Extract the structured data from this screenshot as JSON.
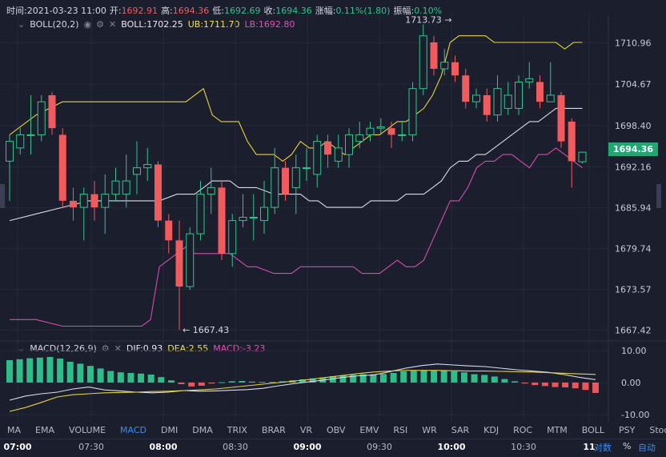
{
  "info_bar": {
    "time_label": "时间:2021-03-23 11:00",
    "open_label": "开:",
    "open": "1692.91",
    "high_label": "高:",
    "high": "1694.36",
    "low_label": "低:",
    "low": "1692.69",
    "close_label": "收:",
    "close": "1694.36",
    "change_label": "涨幅:",
    "change": "0.11%(1.80)",
    "amplitude_label": "振幅:",
    "amplitude": "0.10%"
  },
  "boll_legend": {
    "name": "BOLL(20,2)",
    "mid": "BOLL:1702.25",
    "ub": "UB:1711.70",
    "lb": "LB:1692.80"
  },
  "macd_legend": {
    "name": "MACD(12,26,9)",
    "dif": "DIF:0.93",
    "dea": "DEA:2.55",
    "macd": "MACD:-3.23"
  },
  "current_price_tag": "1694.36",
  "tabs": [
    "MA",
    "EMA",
    "VOLUME",
    "MACD",
    "DMI",
    "DMA",
    "TRIX",
    "BRAR",
    "VR",
    "OBV",
    "EMV",
    "RSI",
    "WR",
    "SAR",
    "KDJ",
    "ROC",
    "MTM",
    "BOLL",
    "PSY",
    "StochRSI"
  ],
  "active_tab": "MACD",
  "time_axis": [
    "07:00",
    "07:30",
    "08:00",
    "08:30",
    "09:00",
    "09:30",
    "10:00",
    "10:30",
    "11"
  ],
  "footer": {
    "log": "对数",
    "percent": "%",
    "auto": "自动"
  },
  "colors": {
    "up": "#2fc58d",
    "down": "#f25b5e",
    "mid": "#d9dbe4",
    "ub": "#e8d33c",
    "lb": "#d84bb0",
    "dif": "#d9dbe4",
    "dea": "#e8d33c",
    "background": "#1b1e2d"
  },
  "chart_data": [
    {
      "type": "candlestick",
      "title": "",
      "y_ticks": [
        1710.96,
        1704.67,
        1698.4,
        1692.16,
        1685.94,
        1679.74,
        1673.57,
        1667.42
      ],
      "ylim": [
        1666.0,
        1715.0
      ],
      "annotations": [
        {
          "label": "1713.73 →",
          "value": 1713.73,
          "index": 42
        },
        {
          "label": "← 1667.43",
          "value": 1667.43,
          "index": 16
        }
      ],
      "candles": [
        {
          "o": 1693.0,
          "c": 1696.0,
          "h": 1697.0,
          "l": 1687.0
        },
        {
          "o": 1695.0,
          "c": 1697.0,
          "h": 1698.0,
          "l": 1694.0
        },
        {
          "o": 1697.0,
          "c": 1697.0,
          "h": 1703.0,
          "l": 1694.0
        },
        {
          "o": 1697.0,
          "c": 1702.0,
          "h": 1703.0,
          "l": 1696.0
        },
        {
          "o": 1703.0,
          "c": 1698.0,
          "h": 1703.5,
          "l": 1697.0
        },
        {
          "o": 1697.0,
          "c": 1687.0,
          "h": 1698.0,
          "l": 1686.0
        },
        {
          "o": 1687.0,
          "c": 1686.0,
          "h": 1689.0,
          "l": 1684.0
        },
        {
          "o": 1686.0,
          "c": 1688.0,
          "h": 1689.0,
          "l": 1681.0
        },
        {
          "o": 1688.0,
          "c": 1686.0,
          "h": 1690.0,
          "l": 1684.0
        },
        {
          "o": 1686.0,
          "c": 1688.0,
          "h": 1691.0,
          "l": 1682.0
        },
        {
          "o": 1688.0,
          "c": 1690.0,
          "h": 1692.0,
          "l": 1687.0
        },
        {
          "o": 1688.0,
          "c": 1690.0,
          "h": 1694.0,
          "l": 1686.0
        },
        {
          "o": 1691.0,
          "c": 1692.0,
          "h": 1696.0,
          "l": 1688.0
        },
        {
          "o": 1692.0,
          "c": 1692.5,
          "h": 1695.0,
          "l": 1690.0
        },
        {
          "o": 1692.5,
          "c": 1684.0,
          "h": 1693.0,
          "l": 1683.0
        },
        {
          "o": 1684.0,
          "c": 1681.0,
          "h": 1685.0,
          "l": 1679.0
        },
        {
          "o": 1681.0,
          "c": 1674.0,
          "h": 1684.0,
          "l": 1667.43
        },
        {
          "o": 1674.0,
          "c": 1682.0,
          "h": 1683.0,
          "l": 1673.5
        },
        {
          "o": 1682.0,
          "c": 1688.0,
          "h": 1690.0,
          "l": 1681.0
        },
        {
          "o": 1688.0,
          "c": 1689.0,
          "h": 1692.0,
          "l": 1685.0
        },
        {
          "o": 1689.0,
          "c": 1679.0,
          "h": 1690.0,
          "l": 1678.0
        },
        {
          "o": 1679.0,
          "c": 1684.0,
          "h": 1685.0,
          "l": 1677.0
        },
        {
          "o": 1684.0,
          "c": 1684.5,
          "h": 1688.0,
          "l": 1683.0
        },
        {
          "o": 1684.5,
          "c": 1684.5,
          "h": 1688.0,
          "l": 1681.0
        },
        {
          "o": 1684.0,
          "c": 1686.0,
          "h": 1690.0,
          "l": 1682.0
        },
        {
          "o": 1686.0,
          "c": 1692.0,
          "h": 1695.0,
          "l": 1685.0
        },
        {
          "o": 1692.0,
          "c": 1688.0,
          "h": 1693.0,
          "l": 1687.0
        },
        {
          "o": 1689.0,
          "c": 1692.0,
          "h": 1694.0,
          "l": 1685.0
        },
        {
          "o": 1692.0,
          "c": 1692.0,
          "h": 1695.0,
          "l": 1690.0
        },
        {
          "o": 1691.0,
          "c": 1696.0,
          "h": 1697.0,
          "l": 1689.0
        },
        {
          "o": 1696.0,
          "c": 1694.0,
          "h": 1697.0,
          "l": 1692.0
        },
        {
          "o": 1693.0,
          "c": 1695.0,
          "h": 1697.0,
          "l": 1692.0
        },
        {
          "o": 1694.0,
          "c": 1697.0,
          "h": 1698.0,
          "l": 1692.0
        },
        {
          "o": 1696.0,
          "c": 1697.0,
          "h": 1699.0,
          "l": 1695.0
        },
        {
          "o": 1697.0,
          "c": 1698.0,
          "h": 1699.0,
          "l": 1696.0
        },
        {
          "o": 1698.0,
          "c": 1698.2,
          "h": 1699.5,
          "l": 1697.0
        },
        {
          "o": 1698.0,
          "c": 1697.0,
          "h": 1699.0,
          "l": 1695.0
        },
        {
          "o": 1697.0,
          "c": 1697.0,
          "h": 1699.0,
          "l": 1696.0
        },
        {
          "o": 1697.0,
          "c": 1704.0,
          "h": 1705.0,
          "l": 1696.0
        },
        {
          "o": 1704.0,
          "c": 1712.0,
          "h": 1713.73,
          "l": 1703.0
        },
        {
          "o": 1711.0,
          "c": 1707.0,
          "h": 1712.0,
          "l": 1706.0
        },
        {
          "o": 1707.0,
          "c": 1708.0,
          "h": 1710.0,
          "l": 1706.0
        },
        {
          "o": 1708.0,
          "c": 1706.0,
          "h": 1709.0,
          "l": 1705.0
        },
        {
          "o": 1706.0,
          "c": 1702.0,
          "h": 1707.0,
          "l": 1701.0
        },
        {
          "o": 1702.0,
          "c": 1703.0,
          "h": 1704.0,
          "l": 1701.0
        },
        {
          "o": 1703.0,
          "c": 1700.0,
          "h": 1704.0,
          "l": 1699.0
        },
        {
          "o": 1700.0,
          "c": 1704.0,
          "h": 1706.0,
          "l": 1699.0
        },
        {
          "o": 1701.0,
          "c": 1703.0,
          "h": 1705.0,
          "l": 1700.0
        },
        {
          "o": 1701.0,
          "c": 1705.0,
          "h": 1706.0,
          "l": 1700.0
        },
        {
          "o": 1705.0,
          "c": 1705.5,
          "h": 1708.0,
          "l": 1704.0
        },
        {
          "o": 1705.0,
          "c": 1702.0,
          "h": 1706.0,
          "l": 1701.0
        },
        {
          "o": 1702.0,
          "c": 1703.0,
          "h": 1708.0,
          "l": 1702.0
        },
        {
          "o": 1703.0,
          "c": 1696.0,
          "h": 1703.5,
          "l": 1695.0
        },
        {
          "o": 1699.0,
          "c": 1693.0,
          "h": 1699.5,
          "l": 1689.0
        },
        {
          "o": 1692.91,
          "c": 1694.36,
          "h": 1694.36,
          "l": 1692.69
        }
      ],
      "boll_ub": [
        1697,
        1700,
        1702,
        1702,
        1702,
        1702,
        1702,
        1702,
        1702,
        1702,
        1702,
        1703,
        1704,
        1700,
        1699,
        1699,
        1699,
        1696,
        1694,
        1694,
        1693,
        1694,
        1696,
        1695,
        1695,
        1696,
        1695,
        1694,
        1695,
        1696,
        1697,
        1697,
        1698,
        1699,
        1699,
        1700,
        1701,
        1703,
        1706,
        1711,
        1712,
        1712,
        1712,
        1712,
        1711,
        1711,
        1711,
        1711,
        1711,
        1711,
        1711,
        1711,
        1710,
        1711,
        1711
      ],
      "boll_mid": [
        1684,
        1685,
        1686,
        1687,
        1687,
        1687,
        1687,
        1687,
        1687,
        1688,
        1688,
        1688,
        1689,
        1690,
        1690,
        1690,
        1689,
        1689,
        1689,
        1688,
        1688,
        1688,
        1688,
        1687,
        1687,
        1686,
        1686,
        1686,
        1686,
        1686,
        1687,
        1687,
        1687,
        1687,
        1688,
        1688,
        1688,
        1689,
        1690,
        1692,
        1693,
        1693,
        1694,
        1694,
        1695,
        1696,
        1697,
        1698,
        1699,
        1699,
        1700,
        1701,
        1701,
        1701,
        1701
      ],
      "boll_lb": [
        1669,
        1669,
        1668,
        1668,
        1668,
        1668,
        1668,
        1669,
        1677,
        1679,
        1680,
        1679,
        1679,
        1679,
        1679,
        1679,
        1678,
        1677,
        1677,
        1676,
        1676,
        1676,
        1677,
        1677,
        1677,
        1677,
        1677,
        1677,
        1677,
        1676,
        1676,
        1676,
        1677,
        1678,
        1677,
        1677,
        1678,
        1681,
        1684,
        1687,
        1687,
        1689,
        1692,
        1693,
        1693,
        1694,
        1694,
        1693,
        1692,
        1694,
        1694,
        1695,
        1694,
        1693,
        1692
      ],
      "boll_x_index": [
        0,
        3,
        6,
        9,
        12,
        14,
        15,
        16,
        17,
        19,
        20,
        21,
        22,
        23,
        24,
        25,
        26,
        27,
        28,
        30,
        31,
        32,
        33,
        34,
        35,
        36,
        37,
        38,
        39,
        40,
        41,
        42,
        43,
        44,
        45,
        46,
        47,
        48,
        49,
        50,
        51,
        52,
        53,
        54,
        55,
        56,
        57,
        58,
        59,
        60,
        61,
        62,
        63,
        64,
        65
      ]
    },
    {
      "type": "bar",
      "title": "MACD(12,26,9)",
      "y_ticks": [
        10.0,
        0.0,
        -10.0
      ],
      "ylim": [
        -12,
        12
      ],
      "macd": [
        7.0,
        7.3,
        7.6,
        7.8,
        8.0,
        7.5,
        6.5,
        5.9,
        5.2,
        4.4,
        3.6,
        3.2,
        3.0,
        2.8,
        2.5,
        1.7,
        0.7,
        -0.5,
        -1.2,
        -1.0,
        -0.3,
        0.1,
        0.4,
        0.5,
        0.3,
        0.2,
        0.2,
        0.4,
        0.7,
        1.0,
        1.3,
        1.6,
        2.0,
        2.2,
        2.4,
        2.6,
        2.6,
        2.7,
        3.0,
        3.5,
        3.7,
        3.9,
        3.7,
        3.7,
        3.5,
        3.2,
        2.6,
        2.4,
        1.9,
        1.1,
        0.4,
        -0.3,
        -0.8,
        -1.1,
        -1.4,
        -1.5,
        -1.8,
        -2.3,
        -3.23
      ],
      "dif": [
        -5.5,
        -4.2,
        -3.5,
        -3.0,
        -2.0,
        -1.4,
        -2.3,
        -2.6,
        -3.0,
        -3.2,
        -3.0,
        -2.5,
        -2.7,
        -2.6,
        -2.4,
        -2.2,
        -1.8,
        -1.0,
        -0.3,
        0.3,
        0.9,
        1.6,
        2.1,
        2.4,
        3.4,
        4.5,
        5.3,
        5.8,
        5.5,
        5.2,
        5.0,
        4.5,
        4.0,
        3.6,
        3.2,
        2.5,
        1.6,
        0.93
      ],
      "dea": [
        -9.0,
        -7.8,
        -6.2,
        -4.5,
        -3.8,
        -3.5,
        -3.2,
        -3.1,
        -3.0,
        -2.8,
        -2.7,
        -2.5,
        -2.3,
        -2.0,
        -1.5,
        -1.0,
        -0.5,
        0.0,
        0.5,
        1.0,
        1.6,
        2.2,
        2.8,
        3.3,
        3.6,
        3.8,
        3.8,
        3.8,
        3.7,
        3.6,
        3.6,
        3.5,
        3.4,
        3.3,
        3.1,
        2.9,
        2.7,
        2.55
      ]
    }
  ]
}
